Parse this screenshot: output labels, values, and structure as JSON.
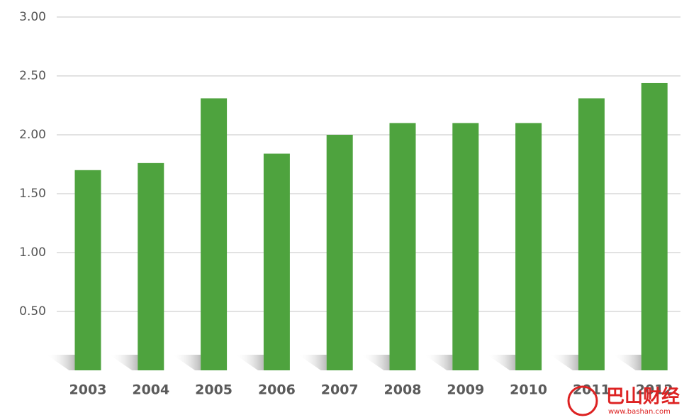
{
  "chart_data": {
    "type": "bar",
    "categories": [
      "2003",
      "2004",
      "2005",
      "2006",
      "2007",
      "2008",
      "2009",
      "2010",
      "2011",
      "2012"
    ],
    "values": [
      1.7,
      1.76,
      2.31,
      1.84,
      2.0,
      2.1,
      2.1,
      2.1,
      2.31,
      2.44
    ],
    "color": "#4ea33e",
    "ylim": [
      0,
      3
    ],
    "yticks": [
      {
        "value": 0.5,
        "label": "0.50"
      },
      {
        "value": 1,
        "label": "1.00"
      },
      {
        "value": 1.5,
        "label": "1.50"
      },
      {
        "value": 2,
        "label": "2.00"
      },
      {
        "value": 2.5,
        "label": "2.50"
      },
      {
        "value": 3,
        "label": "3.00"
      }
    ],
    "grid": true
  },
  "watermark": {
    "text": "巴山财经",
    "url": "www.bashan.com"
  }
}
